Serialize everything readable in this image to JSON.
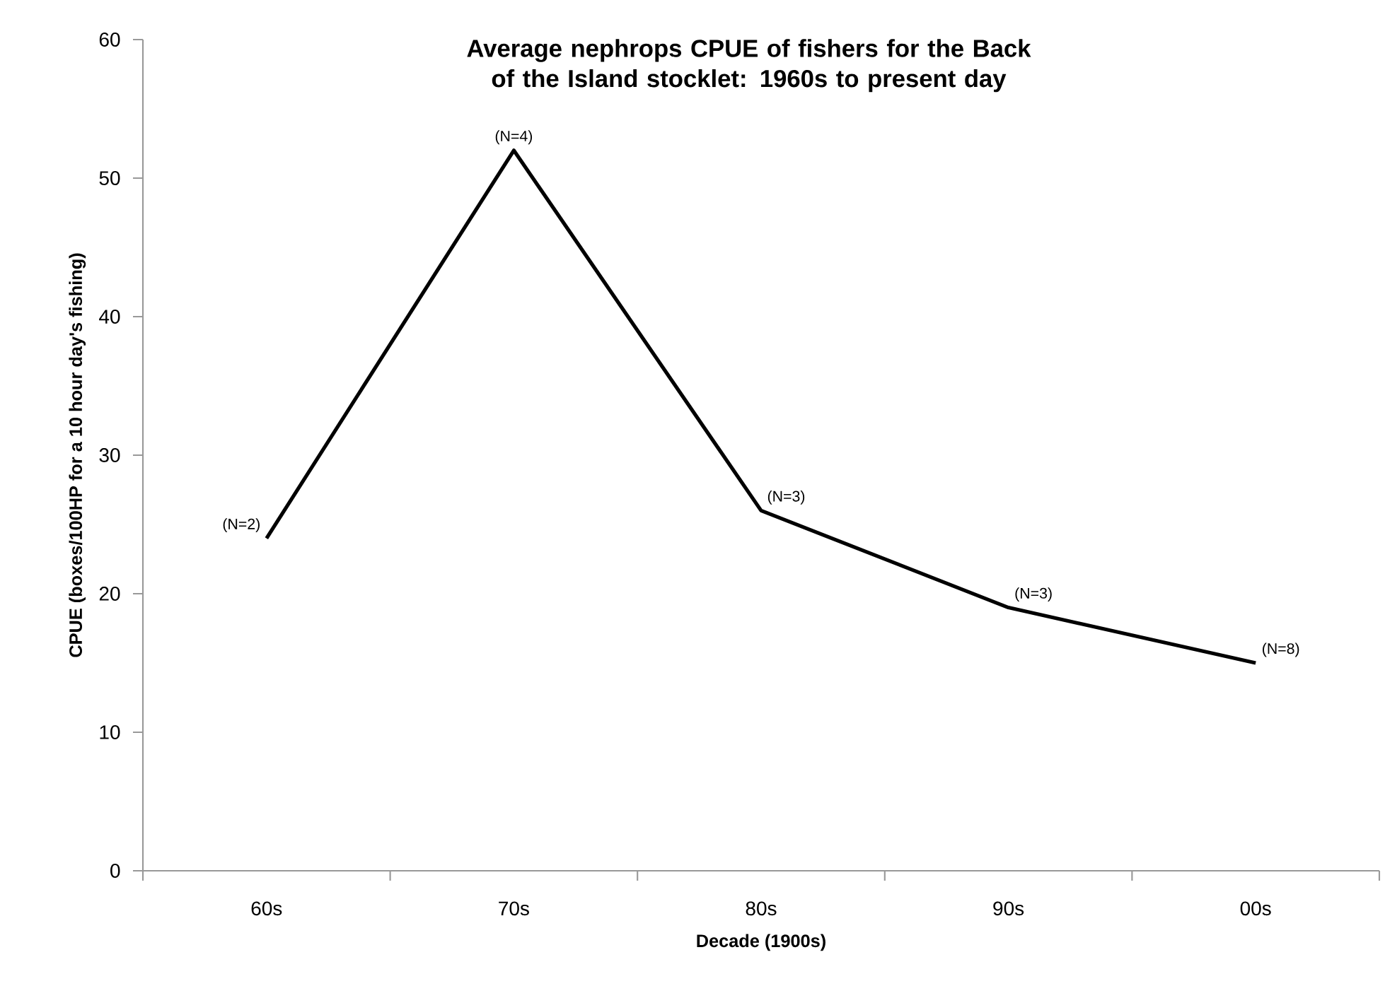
{
  "chart_data": {
    "type": "line",
    "title": "Average nephrops CPUE of fishers for the Back of the Island stocklet: 1960s to present day",
    "xlabel": "Decade (1900s)",
    "ylabel": "CPUE (boxes/100HP for a 10 hour day's fishing)",
    "categories": [
      "60s",
      "70s",
      "80s",
      "90s",
      "00s"
    ],
    "values": [
      24,
      52,
      26,
      19,
      15
    ],
    "color": "#000000",
    "ylim": [
      0,
      60
    ],
    "yticks": [
      0,
      10,
      20,
      30,
      40,
      50,
      60
    ],
    "grid": false,
    "marker": "none",
    "line_style": "solid",
    "annotations": [
      {
        "text": "(N=2)",
        "x": "60s",
        "y": 24
      },
      {
        "text": "(N=4)",
        "x": "70s",
        "y": 52
      },
      {
        "text": "(N=3)",
        "x": "80s",
        "y": 26
      },
      {
        "text": "(N=3)",
        "x": "90s",
        "y": 19
      },
      {
        "text": "(N=8)",
        "x": "00s",
        "y": 15
      }
    ]
  }
}
